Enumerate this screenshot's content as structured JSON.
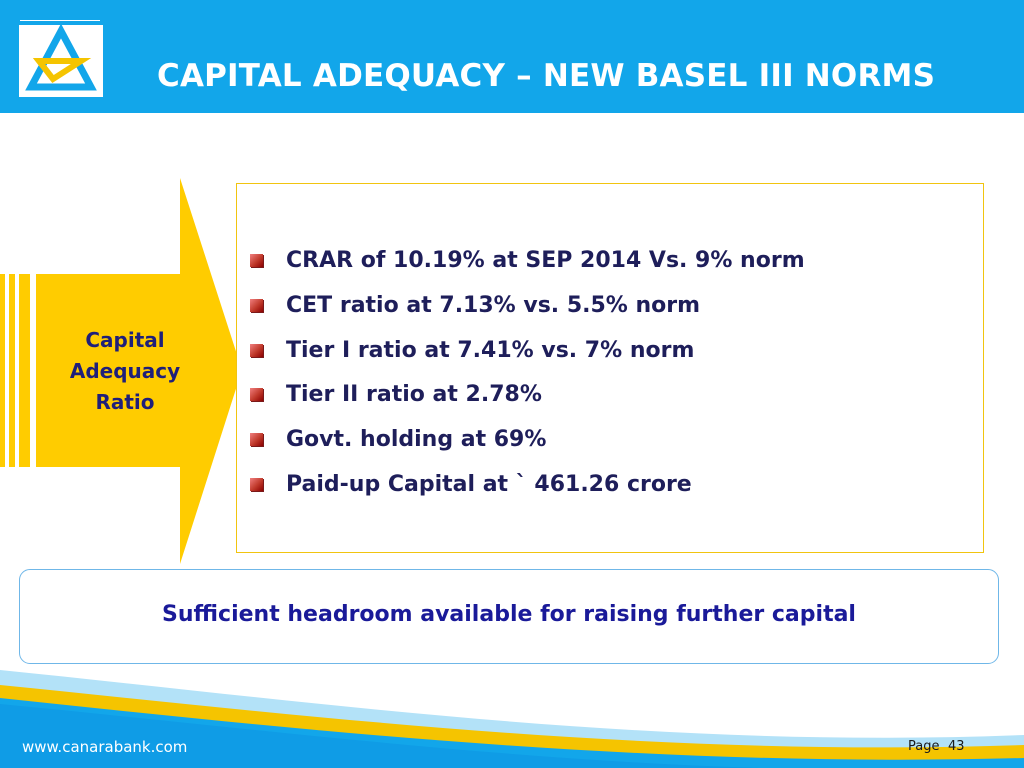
{
  "header": {
    "title": "CAPITAL ADEQUACY – NEW BASEL III NORMS",
    "logo_icon": "canara-bank-logo-icon",
    "color": "#12a6ea"
  },
  "arrow": {
    "label_lines": [
      "Capital",
      "Adequacy",
      "Ratio"
    ],
    "color": "#ffcc00"
  },
  "bullets": [
    "CRAR of 10.19% at  SEP 2014 Vs. 9% norm",
    "CET ratio at  7.13%  vs. 5.5% norm",
    "Tier I ratio at  7.41%  vs. 7% norm",
    "Tier II ratio at 2.78%",
    "Govt. holding at 69%",
    "Paid-up Capital at ` 461.26 crore"
  ],
  "note": {
    "text": "Sufficient headroom  available for raising further capital"
  },
  "footer": {
    "website": "www.canarabank.com",
    "page_label": "Page",
    "page_number": "43"
  }
}
